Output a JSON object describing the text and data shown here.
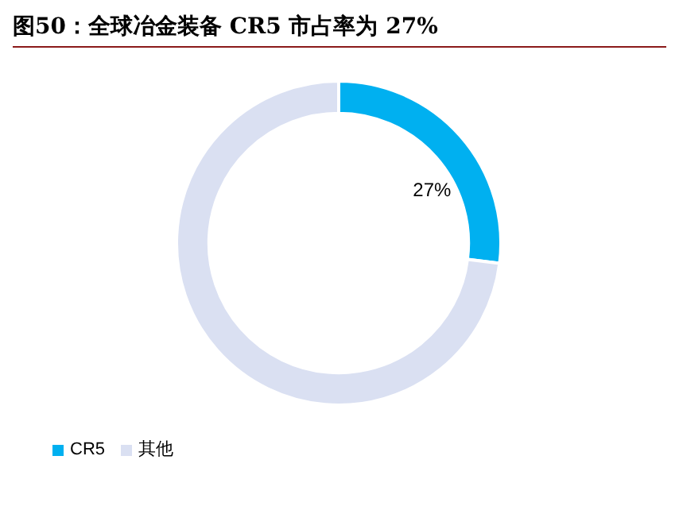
{
  "chart_data": {
    "type": "donut",
    "title": "图50：全球冶金装备 CR5 市占率为 27%",
    "categories": [
      "CR5",
      "其他"
    ],
    "values": [
      27,
      73
    ],
    "colors": [
      "#00b0f0",
      "#dae0f2"
    ],
    "value_labels": [
      "27%",
      null
    ],
    "legend": "bottom"
  }
}
